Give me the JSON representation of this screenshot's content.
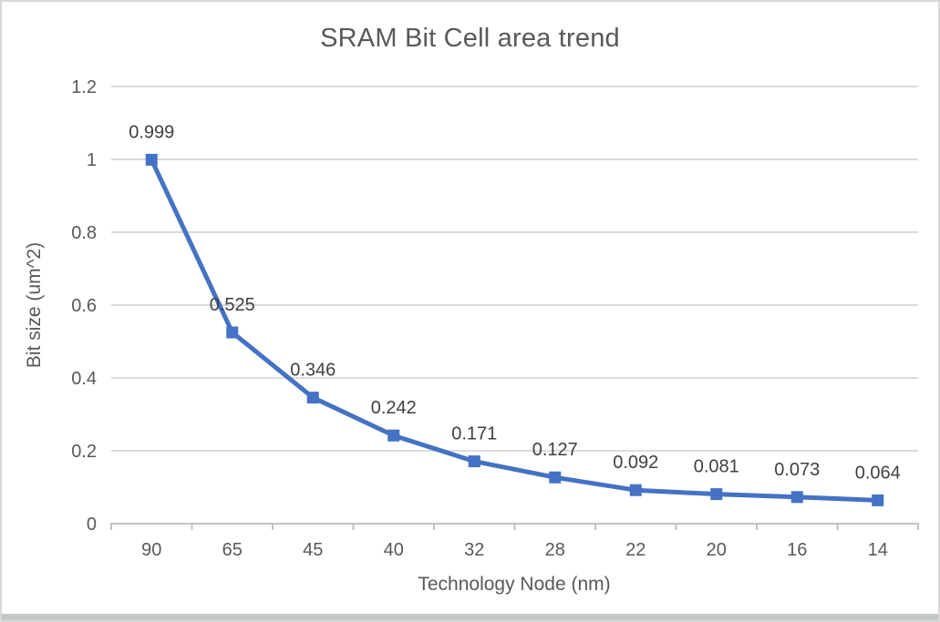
{
  "chart_data": {
    "type": "line",
    "title": "SRAM Bit Cell area trend",
    "xlabel": "Technology Node (nm)",
    "ylabel": "Bit size (um^2)",
    "categories": [
      "90",
      "65",
      "45",
      "40",
      "32",
      "28",
      "22",
      "20",
      "16",
      "14"
    ],
    "values": [
      0.999,
      0.525,
      0.346,
      0.242,
      0.171,
      0.127,
      0.092,
      0.081,
      0.073,
      0.064
    ],
    "data_labels": [
      "0.999",
      "0.525",
      "0.346",
      "0.242",
      "0.171",
      "0.127",
      "0.092",
      "0.081",
      "0.073",
      "0.064"
    ],
    "yticks": [
      "0",
      "0.2",
      "0.4",
      "0.6",
      "0.8",
      "1",
      "1.2"
    ],
    "ylim": [
      0,
      1.2
    ],
    "grid": "horizontal",
    "legend": "none",
    "marker": "square",
    "colors": {
      "series": "#4472C4",
      "gridline": "#DBDBDB",
      "axis_line": "#C0C3C2",
      "tick_text": "#595959",
      "title_text": "#595959",
      "axis_title_text": "#595959",
      "data_label_text": "#404040",
      "bottom_edge": "#c3c7c5"
    }
  }
}
